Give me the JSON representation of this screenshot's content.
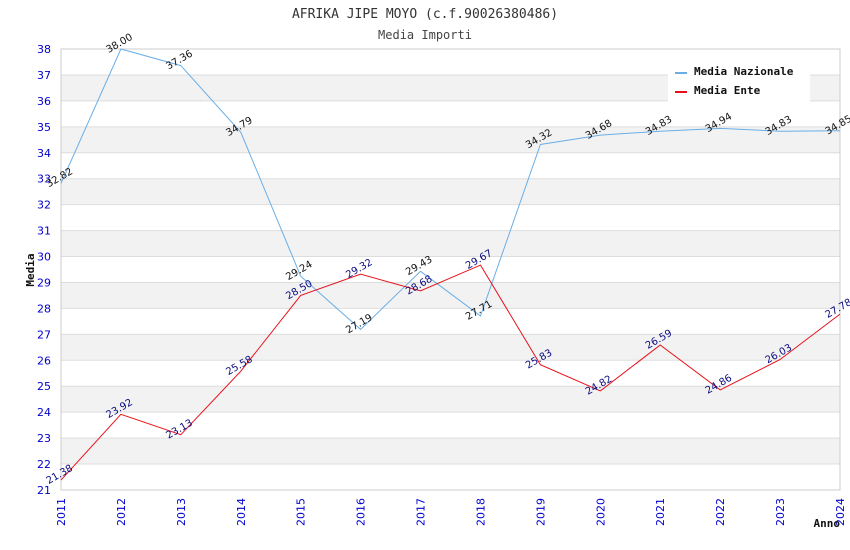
{
  "chart_data": {
    "type": "line",
    "title": "AFRIKA JIPE MOYO (c.f.90026380486)",
    "subtitle": "Media Importi",
    "xlabel": "Anno",
    "ylabel": "Media",
    "categories": [
      "2011",
      "2012",
      "2013",
      "2014",
      "2015",
      "2016",
      "2017",
      "2018",
      "2019",
      "2020",
      "2021",
      "2022",
      "2023",
      "2024"
    ],
    "ylim": [
      21,
      38
    ],
    "yticks": [
      "21",
      "22",
      "23",
      "24",
      "25",
      "26",
      "27",
      "28",
      "29",
      "30",
      "31",
      "32",
      "33",
      "34",
      "35",
      "36",
      "37",
      "38"
    ],
    "grid": true,
    "legend_position": "top-right",
    "series": [
      {
        "name": "Media Nazionale",
        "color": "#6aaee6",
        "values": [
          32.82,
          38.0,
          37.36,
          34.79,
          29.24,
          27.19,
          29.43,
          27.71,
          34.32,
          34.68,
          34.83,
          34.94,
          34.83,
          34.85
        ],
        "labels": [
          "32.82",
          "38.00",
          "37.36",
          "34.79",
          "29.24",
          "27.19",
          "29.43",
          "27.71",
          "34.32",
          "34.68",
          "34.83",
          "34.94",
          "34.83",
          "34.85"
        ]
      },
      {
        "name": "Media Ente",
        "color": "#e8101a",
        "values": [
          21.38,
          23.92,
          23.13,
          25.58,
          28.5,
          29.32,
          28.68,
          29.67,
          25.83,
          24.82,
          26.59,
          24.86,
          26.03,
          27.78
        ],
        "labels": [
          "21.38",
          "23.92",
          "23.13",
          "25.58",
          "28.50",
          "29.32",
          "28.68",
          "29.67",
          "25.83",
          "24.82",
          "26.59",
          "24.86",
          "26.03",
          "27.78"
        ]
      }
    ]
  }
}
